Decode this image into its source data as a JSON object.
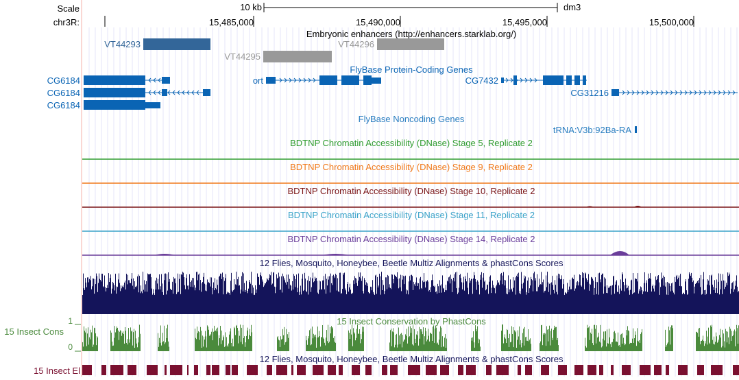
{
  "ruler": {
    "scale_label": "Scale",
    "chrom_label": "chr3R:",
    "scale_bar_label": "10 kb",
    "assembly": "dm3",
    "positions": [
      "15,485,000",
      "15,490,000",
      "15,495,000",
      "15,500,000"
    ]
  },
  "enhancers": {
    "track_title": "Embryonic enhancers (http://enhancers.starklab.org/)",
    "items": [
      {
        "label": "VT44293",
        "color": "#336699"
      },
      {
        "label": "VT44295",
        "color": "#999999"
      },
      {
        "label": "VT44296",
        "color": "#999999"
      }
    ]
  },
  "protein_genes": {
    "track_title": "FlyBase Protein-Coding Genes",
    "genes": [
      "CG6184",
      "CG6184",
      "CG6184",
      "ort",
      "CG7432",
      "CG31216"
    ],
    "color": "#0a64b4"
  },
  "noncoding_genes": {
    "track_title": "FlyBase Noncoding Genes",
    "genes": [
      "tRNA:V3b:92Ba-RA"
    ]
  },
  "dnase_tracks": [
    {
      "title": "BDTNP Chromatin Accessibility (DNase) Stage 5, Replicate 2",
      "color": "#2e9b2e"
    },
    {
      "title": "BDTNP Chromatin Accessibility (DNase) Stage 9, Replicate 2",
      "color": "#f07818"
    },
    {
      "title": "BDTNP Chromatin Accessibility (DNase) Stage 10, Replicate 2",
      "color": "#7a1416"
    },
    {
      "title": "BDTNP Chromatin Accessibility (DNase) Stage 11, Replicate 2",
      "color": "#3ba3c9"
    },
    {
      "title": "BDTNP Chromatin Accessibility (DNase) Stage 14, Replicate 2",
      "color": "#6a3d9a"
    }
  ],
  "multiz": {
    "track_title": "12 Flies, Mosquito, Honeybee, Beetle Multiz Alignments & phastCons Scores",
    "color": "#14145a"
  },
  "phastcons": {
    "side_label": "15 Insect Cons",
    "track_title": "15 Insect Conservation by PhastCons",
    "axis_max": "1",
    "axis_min": "0",
    "color": "#4a8a3c"
  },
  "elements": {
    "side_label": "15 Insect El",
    "track_title": "12 Flies, Mosquito, Honeybee, Beetle Multiz Alignments & phastCons Scores",
    "color": "#7a1030"
  }
}
